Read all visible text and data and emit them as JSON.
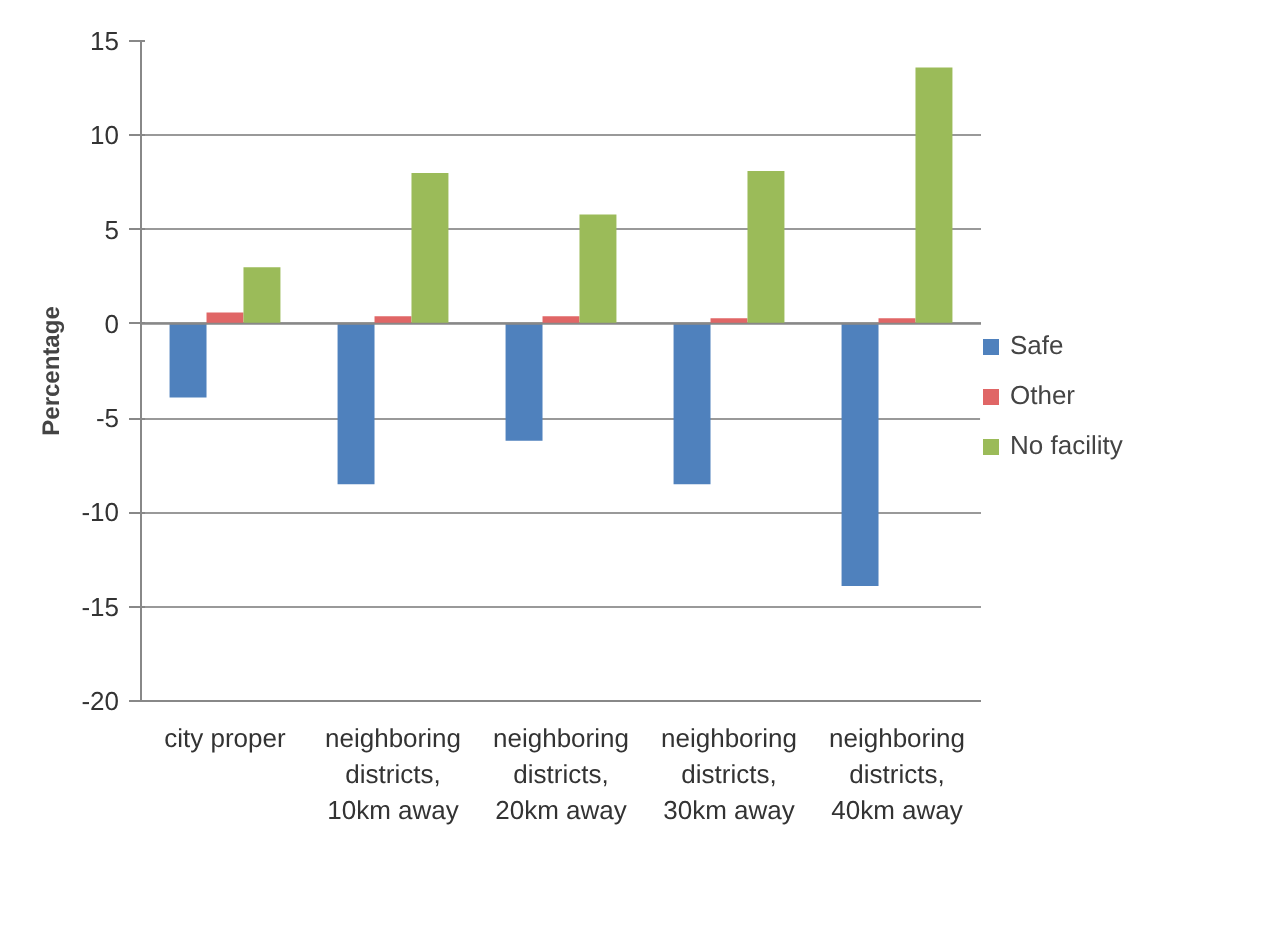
{
  "chart_data": {
    "type": "bar",
    "ylabel": "Percentage",
    "categories": [
      "city proper",
      "neighboring\ndistricts,\n10km away",
      "neighboring\ndistricts,\n20km away",
      "neighboring\ndistricts,\n30km away",
      "neighboring\ndistricts,\n40km away"
    ],
    "series": [
      {
        "name": "Safe",
        "color": "#4f81bd",
        "values": [
          -3.9,
          -8.5,
          -6.2,
          -8.5,
          -13.9
        ]
      },
      {
        "name": "Other",
        "color": "#e06666",
        "values": [
          0.6,
          0.4,
          0.4,
          0.3,
          0.3
        ]
      },
      {
        "name": "No facility",
        "color": "#9bbb59",
        "values": [
          3.0,
          8.0,
          5.8,
          8.1,
          13.6
        ]
      }
    ],
    "ylim": [
      -20,
      15
    ],
    "yticks": [
      -20,
      -15,
      -10,
      -5,
      0,
      5,
      10,
      15
    ],
    "grid": "y",
    "legend": "right"
  }
}
